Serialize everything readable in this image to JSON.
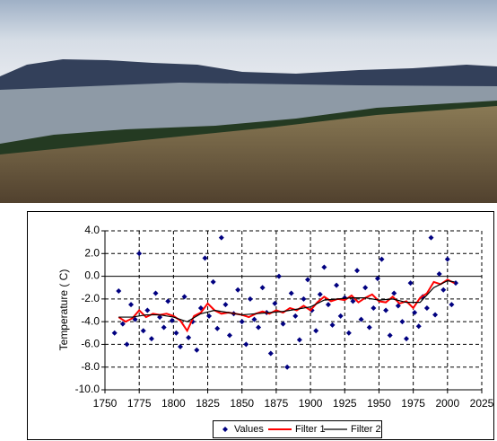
{
  "chart_data": {
    "type": "scatter",
    "ylabel": "Temperature ( C)",
    "xlim": [
      1750,
      2025
    ],
    "xticks": [
      1750,
      1775,
      1800,
      1825,
      1850,
      1875,
      1900,
      1925,
      1950,
      1975,
      2000,
      2025
    ],
    "ylim": [
      -10,
      4
    ],
    "yticks": [
      {
        "value": 4,
        "label": "4.0"
      },
      {
        "value": 2,
        "label": "2.0"
      },
      {
        "value": 0,
        "label": "0.0"
      },
      {
        "value": -2,
        "label": "-2.0"
      },
      {
        "value": -4,
        "label": "-4.0"
      },
      {
        "value": -6,
        "label": "-6.0"
      },
      {
        "value": -8,
        "label": "-8.0"
      },
      {
        "value": -10,
        "label": "-10.0"
      }
    ],
    "grid": true,
    "legend": "bottom",
    "series": [
      {
        "name": "Values",
        "type": "scatter",
        "color": "#000080",
        "x": [
          1757,
          1760,
          1763,
          1766,
          1769,
          1772,
          1775,
          1778,
          1781,
          1784,
          1787,
          1790,
          1793,
          1796,
          1799,
          1802,
          1805,
          1808,
          1811,
          1814,
          1817,
          1820,
          1823,
          1826,
          1829,
          1832,
          1835,
          1838,
          1841,
          1844,
          1847,
          1850,
          1853,
          1856,
          1859,
          1862,
          1865,
          1868,
          1871,
          1874,
          1877,
          1880,
          1883,
          1886,
          1889,
          1892,
          1895,
          1898,
          1901,
          1904,
          1907,
          1910,
          1913,
          1916,
          1919,
          1922,
          1925,
          1928,
          1931,
          1934,
          1937,
          1940,
          1943,
          1946,
          1949,
          1952,
          1955,
          1958,
          1961,
          1964,
          1967,
          1970,
          1973,
          1976,
          1979,
          1982,
          1985,
          1988,
          1991,
          1994,
          1997,
          2000,
          2003,
          2006
        ],
        "values": [
          -5.0,
          -1.3,
          -4.2,
          -6.0,
          -2.5,
          -3.8,
          2.0,
          -4.8,
          -3.0,
          -5.5,
          -1.5,
          -3.6,
          -4.5,
          -2.2,
          -3.9,
          -5.0,
          -6.2,
          -1.8,
          -5.4,
          -4.0,
          -6.5,
          -2.8,
          1.6,
          -3.5,
          -0.5,
          -4.6,
          3.4,
          -2.5,
          -5.2,
          -3.3,
          -1.2,
          -4.0,
          -6.0,
          -2.0,
          -3.8,
          -4.5,
          -1.0,
          -3.2,
          -6.8,
          -2.4,
          0.0,
          -4.2,
          -8.0,
          -1.5,
          -3.5,
          -5.6,
          -2.0,
          -0.3,
          -3.0,
          -4.8,
          -1.6,
          0.8,
          -2.5,
          -4.3,
          -0.8,
          -3.5,
          -1.9,
          -5.0,
          -2.2,
          0.5,
          -3.8,
          -1.0,
          -4.5,
          -2.8,
          -0.2,
          1.5,
          -3.0,
          -5.2,
          -1.5,
          -2.6,
          -4.0,
          -5.5,
          -0.6,
          -3.2,
          -4.4,
          -1.8,
          -2.8,
          3.4,
          -3.4,
          0.2,
          -1.2,
          1.5,
          -2.5,
          -0.6
        ]
      },
      {
        "name": "Filter 1",
        "type": "line",
        "color": "#ff0000",
        "x": [
          1760,
          1765,
          1770,
          1775,
          1780,
          1785,
          1790,
          1795,
          1800,
          1805,
          1810,
          1815,
          1820,
          1825,
          1830,
          1835,
          1840,
          1845,
          1850,
          1855,
          1860,
          1865,
          1870,
          1875,
          1880,
          1885,
          1890,
          1895,
          1900,
          1905,
          1910,
          1915,
          1920,
          1925,
          1930,
          1935,
          1940,
          1945,
          1950,
          1955,
          1960,
          1965,
          1970,
          1975,
          1980,
          1985,
          1990,
          1995,
          2000,
          2005
        ],
        "values": [
          -3.6,
          -4.0,
          -3.7,
          -3.0,
          -3.6,
          -3.3,
          -3.4,
          -3.3,
          -3.5,
          -3.9,
          -4.8,
          -3.5,
          -3.2,
          -2.4,
          -3.0,
          -3.3,
          -3.2,
          -3.3,
          -3.4,
          -3.6,
          -3.3,
          -3.1,
          -3.3,
          -3.0,
          -3.2,
          -2.8,
          -3.0,
          -2.6,
          -3.0,
          -2.3,
          -1.8,
          -2.2,
          -2.0,
          -2.1,
          -1.7,
          -2.3,
          -1.9,
          -1.6,
          -2.2,
          -2.3,
          -1.8,
          -2.4,
          -2.2,
          -2.8,
          -1.9,
          -1.5,
          -0.5,
          -0.7,
          -0.3,
          -0.6
        ]
      },
      {
        "name": "Filter 2",
        "type": "line",
        "color": "#000000",
        "x": [
          1760,
          1770,
          1780,
          1790,
          1800,
          1810,
          1820,
          1830,
          1840,
          1850,
          1860,
          1870,
          1880,
          1890,
          1900,
          1910,
          1920,
          1930,
          1940,
          1950,
          1960,
          1970,
          1980,
          1990,
          2000,
          2005
        ],
        "values": [
          -3.6,
          -3.6,
          -3.4,
          -3.4,
          -3.6,
          -4.0,
          -3.3,
          -3.0,
          -3.2,
          -3.4,
          -3.3,
          -3.2,
          -3.1,
          -2.9,
          -2.7,
          -2.1,
          -2.0,
          -1.9,
          -1.9,
          -2.1,
          -2.0,
          -2.3,
          -2.3,
          -1.0,
          -0.4,
          -0.5
        ]
      }
    ]
  }
}
